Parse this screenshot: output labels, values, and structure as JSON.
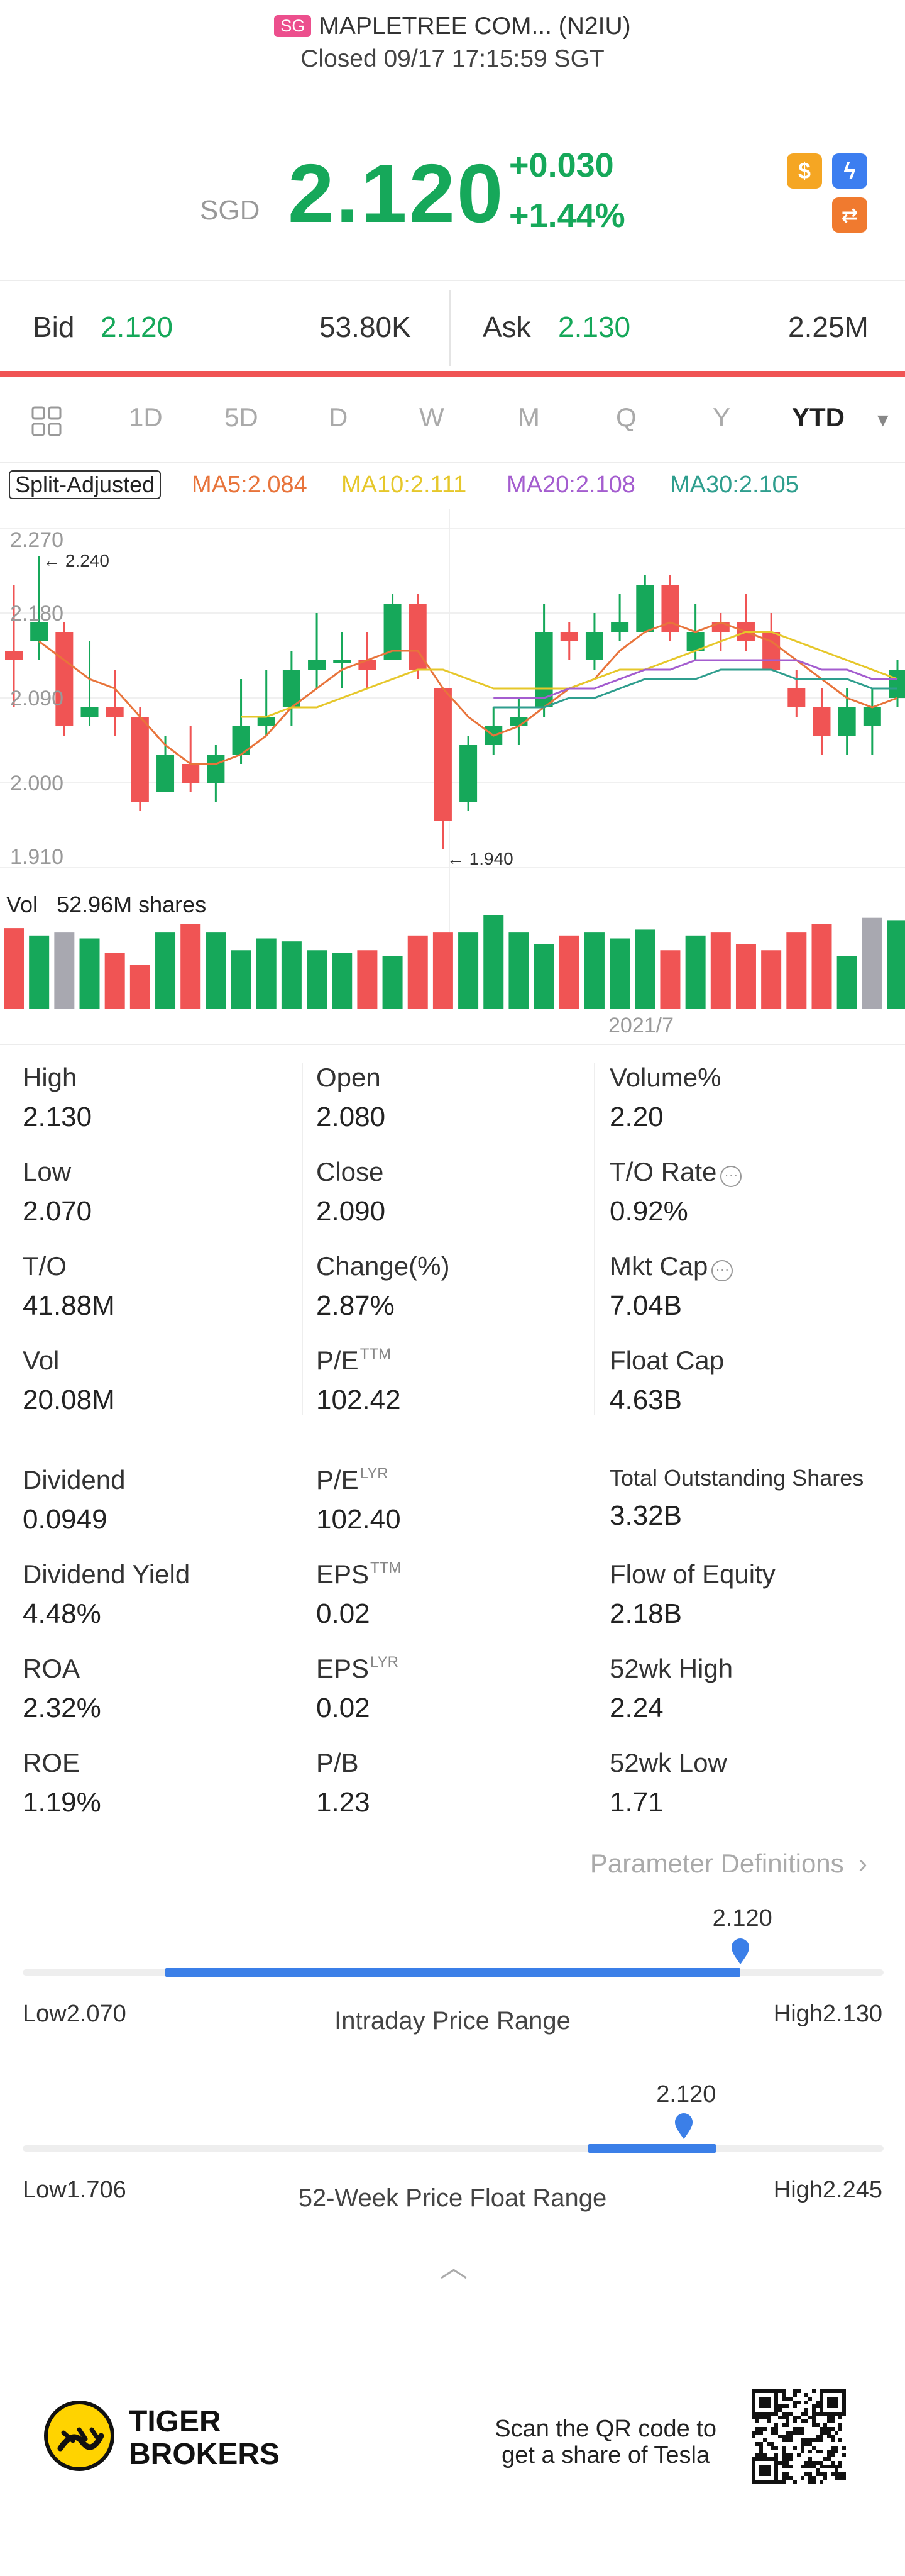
{
  "header": {
    "market": "SG",
    "title": "MAPLETREE COM... (N2IU)",
    "status": "Closed 09/17 17:15:59 SGT"
  },
  "quote": {
    "currency": "SGD",
    "price": "2.120",
    "change": "+0.030",
    "change_pct": "+1.44%",
    "up_color": "#16a85a",
    "down_color": "#f05454"
  },
  "icons": [
    "dollar-icon",
    "bolt-icon",
    "swap-icon"
  ],
  "bid_ask": {
    "bid_label": "Bid",
    "bid_price": "2.120",
    "bid_vol": "53.80K",
    "ask_label": "Ask",
    "ask_price": "2.130",
    "ask_vol": "2.25M"
  },
  "tabs": [
    "1D",
    "5D",
    "D",
    "W",
    "M",
    "Q",
    "Y",
    "YTD"
  ],
  "active_tab": "YTD",
  "ma_legend": {
    "split": "Split-Adjusted",
    "ma5": "MA5:2.084",
    "ma10": "MA10:2.111",
    "ma20": "MA20:2.108",
    "ma30": "MA30:2.105",
    "ma5_color": "#e8743b",
    "ma10_color": "#e6c72a",
    "ma20_color": "#a45dcf",
    "ma30_color": "#2f9e8e"
  },
  "chart_data": {
    "type": "candlestick",
    "y_ticks": [
      "2.270",
      "2.180",
      "2.090",
      "2.000",
      "1.910"
    ],
    "ylim": [
      1.91,
      2.27
    ],
    "annotations": {
      "high": "2.240",
      "low": "1.940"
    },
    "x_label": "2021/7",
    "volume_label": "Vol",
    "volume_value": "52.96M shares",
    "candles": [
      [
        2.14,
        2.13,
        2.21,
        2.08
      ],
      [
        2.15,
        2.17,
        2.24,
        2.13
      ],
      [
        2.16,
        2.06,
        2.17,
        2.05
      ],
      [
        2.07,
        2.08,
        2.15,
        2.06
      ],
      [
        2.08,
        2.07,
        2.12,
        2.05
      ],
      [
        2.07,
        1.98,
        2.08,
        1.97
      ],
      [
        1.99,
        2.03,
        2.05,
        1.99
      ],
      [
        2.02,
        2.0,
        2.06,
        1.99
      ],
      [
        2.0,
        2.03,
        2.04,
        1.98
      ],
      [
        2.03,
        2.06,
        2.11,
        2.02
      ],
      [
        2.06,
        2.07,
        2.12,
        2.05
      ],
      [
        2.08,
        2.12,
        2.14,
        2.06
      ],
      [
        2.12,
        2.13,
        2.18,
        2.1
      ],
      [
        2.13,
        2.13,
        2.16,
        2.1
      ],
      [
        2.13,
        2.12,
        2.16,
        2.1
      ],
      [
        2.13,
        2.19,
        2.2,
        2.13
      ],
      [
        2.19,
        2.12,
        2.2,
        2.11
      ],
      [
        2.1,
        1.96,
        2.1,
        1.93
      ],
      [
        1.98,
        2.04,
        2.05,
        1.97
      ],
      [
        2.04,
        2.06,
        2.08,
        2.03
      ],
      [
        2.06,
        2.07,
        2.09,
        2.04
      ],
      [
        2.08,
        2.16,
        2.19,
        2.07
      ],
      [
        2.16,
        2.15,
        2.17,
        2.13
      ],
      [
        2.13,
        2.16,
        2.18,
        2.12
      ],
      [
        2.16,
        2.17,
        2.2,
        2.15
      ],
      [
        2.16,
        2.21,
        2.22,
        2.16
      ],
      [
        2.21,
        2.16,
        2.22,
        2.15
      ],
      [
        2.14,
        2.16,
        2.19,
        2.13
      ],
      [
        2.17,
        2.16,
        2.18,
        2.14
      ],
      [
        2.17,
        2.15,
        2.2,
        2.14
      ],
      [
        2.16,
        2.12,
        2.18,
        2.12
      ],
      [
        2.1,
        2.08,
        2.12,
        2.07
      ],
      [
        2.08,
        2.05,
        2.1,
        2.03
      ],
      [
        2.05,
        2.08,
        2.1,
        2.03
      ],
      [
        2.06,
        2.08,
        2.1,
        2.03
      ],
      [
        2.09,
        2.12,
        2.13,
        2.08
      ]
    ],
    "volumes": [
      55,
      50,
      52,
      48,
      38,
      30,
      52,
      58,
      52,
      40,
      48,
      46,
      40,
      38,
      40,
      36,
      50,
      52,
      52,
      64,
      52,
      44,
      50,
      52,
      48,
      54,
      40,
      50,
      52,
      44,
      40,
      52,
      58,
      36,
      62,
      60
    ],
    "volume_gray": [
      2,
      34
    ],
    "ma_series": {
      "ma5": [
        null,
        2.15,
        2.13,
        2.11,
        2.1,
        2.07,
        2.04,
        2.02,
        2.02,
        2.03,
        2.05,
        2.08,
        2.1,
        2.12,
        2.13,
        2.14,
        2.14,
        2.1,
        2.07,
        2.05,
        2.06,
        2.08,
        2.1,
        2.11,
        2.14,
        2.16,
        2.17,
        2.16,
        2.17,
        2.16,
        2.15,
        2.13,
        2.11,
        2.09,
        2.08,
        2.09
      ],
      "ma10": [
        null,
        null,
        null,
        null,
        null,
        null,
        null,
        null,
        null,
        2.07,
        2.07,
        2.08,
        2.08,
        2.09,
        2.1,
        2.11,
        2.12,
        2.12,
        2.11,
        2.1,
        2.1,
        2.1,
        2.1,
        2.11,
        2.12,
        2.12,
        2.13,
        2.14,
        2.15,
        2.16,
        2.16,
        2.15,
        2.14,
        2.13,
        2.12,
        2.11
      ],
      "ma20": [
        null,
        null,
        null,
        null,
        null,
        null,
        null,
        null,
        null,
        null,
        null,
        null,
        null,
        null,
        null,
        null,
        null,
        null,
        null,
        2.09,
        2.09,
        2.09,
        2.1,
        2.1,
        2.11,
        2.12,
        2.12,
        2.13,
        2.13,
        2.13,
        2.13,
        2.13,
        2.12,
        2.12,
        2.11,
        2.11
      ],
      "ma30": [
        null,
        null,
        null,
        null,
        null,
        null,
        null,
        null,
        null,
        null,
        null,
        null,
        null,
        null,
        null,
        null,
        null,
        null,
        null,
        2.08,
        2.08,
        2.08,
        2.09,
        2.09,
        2.1,
        2.11,
        2.11,
        2.11,
        2.12,
        2.12,
        2.12,
        2.11,
        2.11,
        2.11,
        2.1,
        2.1
      ]
    }
  },
  "stats": [
    [
      {
        "label": "High",
        "value": "2.130"
      },
      {
        "label": "Open",
        "value": "2.080"
      },
      {
        "label": "Volume%",
        "value": "2.20"
      }
    ],
    [
      {
        "label": "Low",
        "value": "2.070"
      },
      {
        "label": "Close",
        "value": "2.090"
      },
      {
        "label": "T/O Rate",
        "value": "0.92%"
      }
    ],
    [
      {
        "label": "T/O",
        "value": "41.88M"
      },
      {
        "label": "Change(%)",
        "value": "2.87%"
      },
      {
        "label": "Mkt Cap",
        "value": "7.04B"
      }
    ],
    [
      {
        "label": "Vol",
        "value": "20.08M"
      },
      {
        "label": "P/E",
        "sup": "TTM",
        "value": "102.42"
      },
      {
        "label": "Float Cap",
        "value": "4.63B"
      }
    ],
    [
      {
        "label": "Dividend",
        "value": "0.0949"
      },
      {
        "label": "P/E",
        "sup": "LYR",
        "value": "102.40"
      },
      {
        "label": "Total Outstanding Shares",
        "value": "3.32B"
      }
    ],
    [
      {
        "label": "Dividend Yield",
        "value": "4.48%"
      },
      {
        "label": "EPS",
        "sup": "TTM",
        "value": "0.02"
      },
      {
        "label": "Flow of Equity",
        "value": "2.18B"
      }
    ],
    [
      {
        "label": "ROA",
        "value": "2.32%"
      },
      {
        "label": "EPS",
        "sup": "LYR",
        "value": "0.02"
      },
      {
        "label": "52wk High",
        "value": "2.24"
      }
    ],
    [
      {
        "label": "ROE",
        "value": "1.19%"
      },
      {
        "label": "P/B",
        "value": "1.23"
      },
      {
        "label": "52wk Low",
        "value": "1.71"
      }
    ]
  ],
  "param_link": "Parameter Definitions",
  "intraday": {
    "title": "Intraday Price Range",
    "low_label": "Low2.070",
    "high_label": "High2.130",
    "current": "2.120",
    "low": 2.07,
    "high": 2.13,
    "open": 2.08,
    "price": 2.12
  },
  "week52": {
    "title": "52-Week Price Float Range",
    "low_label": "Low1.706",
    "high_label": "High2.245",
    "current": "2.120",
    "low": 1.706,
    "high": 2.245,
    "band_lo": 2.06,
    "band_hi": 2.14,
    "price": 2.12
  },
  "footer": {
    "brand_line1": "TIGER",
    "brand_line2": "BROKERS",
    "scan_line1": "Scan the QR code to",
    "scan_line2": "get a share of Tesla"
  }
}
